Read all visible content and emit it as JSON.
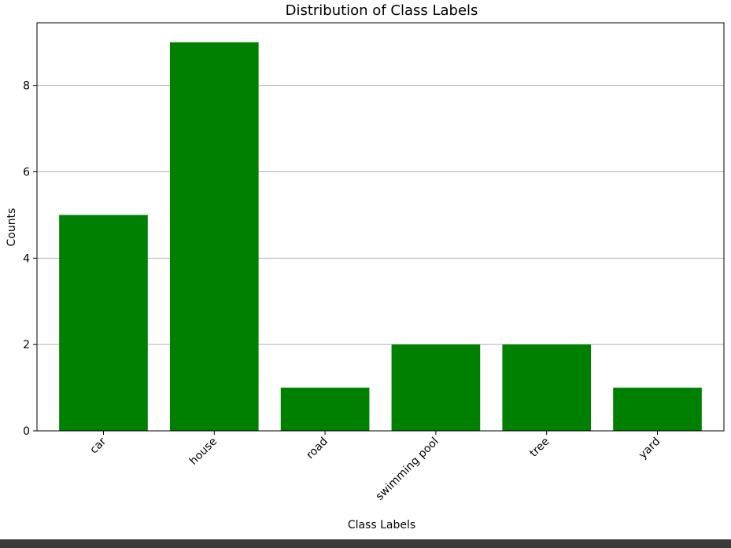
{
  "chart_data": {
    "type": "bar",
    "title": "Distribution of Class Labels",
    "xlabel": "Class Labels",
    "ylabel": "Counts",
    "categories": [
      "car",
      "house",
      "road",
      "swimming pool",
      "tree",
      "yard"
    ],
    "values": [
      5,
      9,
      1,
      2,
      2,
      1
    ],
    "ylim": [
      0,
      9.45
    ],
    "yticks": [
      0,
      2,
      4,
      6,
      8
    ],
    "grid": "y-major",
    "bar_color": "#008000",
    "grid_color": "#b0b0b0",
    "tick_label_rotation_deg": 45
  }
}
